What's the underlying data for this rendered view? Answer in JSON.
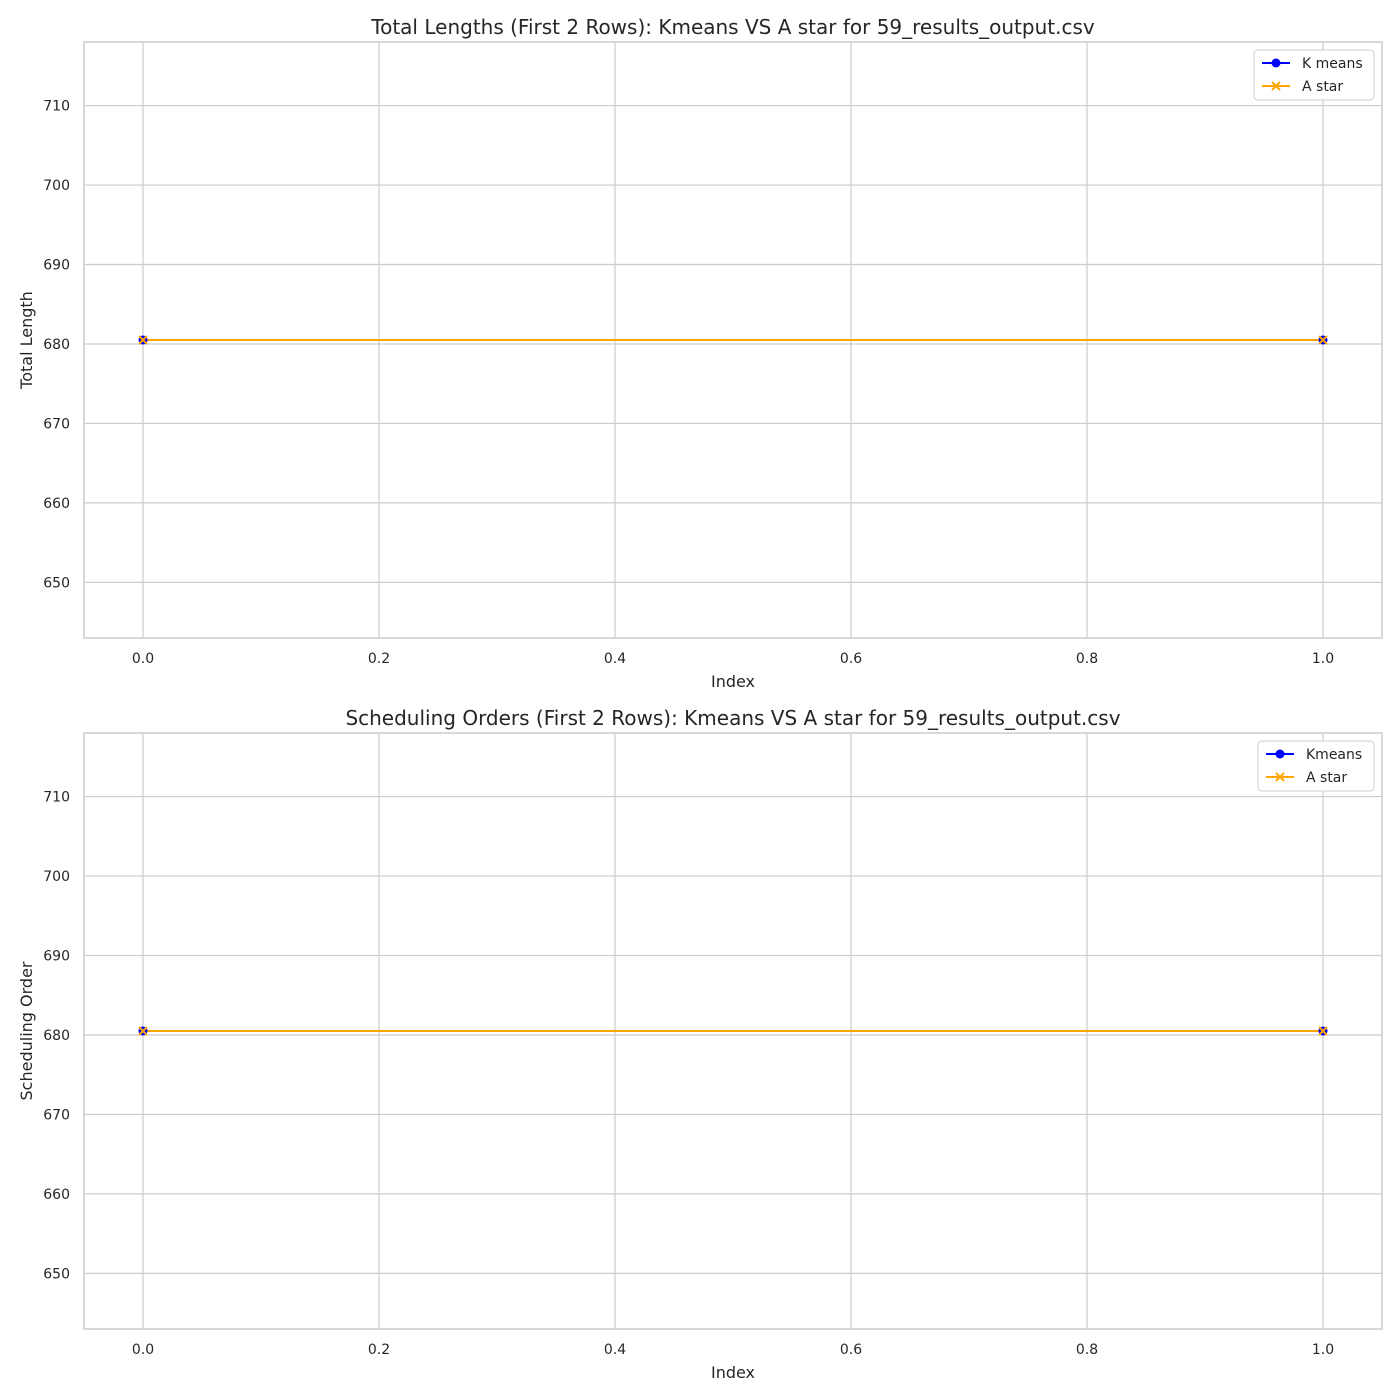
{
  "chart_data": [
    {
      "type": "line",
      "title": "Total Lengths (First 2 Rows): Kmeans VS A star for 59_results_output.csv",
      "xlabel": "Index",
      "ylabel": "Total Length",
      "xlim": [
        -0.05,
        1.05
      ],
      "ylim": [
        643,
        718
      ],
      "xticks": [
        0.0,
        0.2,
        0.4,
        0.6,
        0.8,
        1.0
      ],
      "xtick_labels": [
        "0.0",
        "0.2",
        "0.4",
        "0.6",
        "0.8",
        "1.0"
      ],
      "yticks": [
        650,
        660,
        670,
        680,
        690,
        700,
        710
      ],
      "ytick_labels": [
        "650",
        "660",
        "670",
        "680",
        "690",
        "700",
        "710"
      ],
      "grid": true,
      "legend_position": "top-right",
      "x": [
        0,
        1
      ],
      "series": [
        {
          "name": "K means",
          "values": [
            680.5,
            680.5
          ],
          "color": "#0000ff",
          "marker": "o"
        },
        {
          "name": "A star",
          "values": [
            680.5,
            680.5
          ],
          "color": "#ffa500",
          "marker": "x"
        }
      ]
    },
    {
      "type": "line",
      "title": "Scheduling Orders (First 2 Rows): Kmeans VS A star for 59_results_output.csv",
      "xlabel": "Index",
      "ylabel": "Scheduling Order",
      "xlim": [
        -0.05,
        1.05
      ],
      "ylim": [
        643,
        718
      ],
      "xticks": [
        0.0,
        0.2,
        0.4,
        0.6,
        0.8,
        1.0
      ],
      "xtick_labels": [
        "0.0",
        "0.2",
        "0.4",
        "0.6",
        "0.8",
        "1.0"
      ],
      "yticks": [
        650,
        660,
        670,
        680,
        690,
        700,
        710
      ],
      "ytick_labels": [
        "650",
        "660",
        "670",
        "680",
        "690",
        "700",
        "710"
      ],
      "grid": true,
      "legend_position": "top-right",
      "x": [
        0,
        1
      ],
      "series": [
        {
          "name": "Kmeans",
          "values": [
            680.5,
            680.5
          ],
          "color": "#0000ff",
          "marker": "o"
        },
        {
          "name": "A star",
          "values": [
            680.5,
            680.5
          ],
          "color": "#ffa500",
          "marker": "x"
        }
      ]
    }
  ]
}
